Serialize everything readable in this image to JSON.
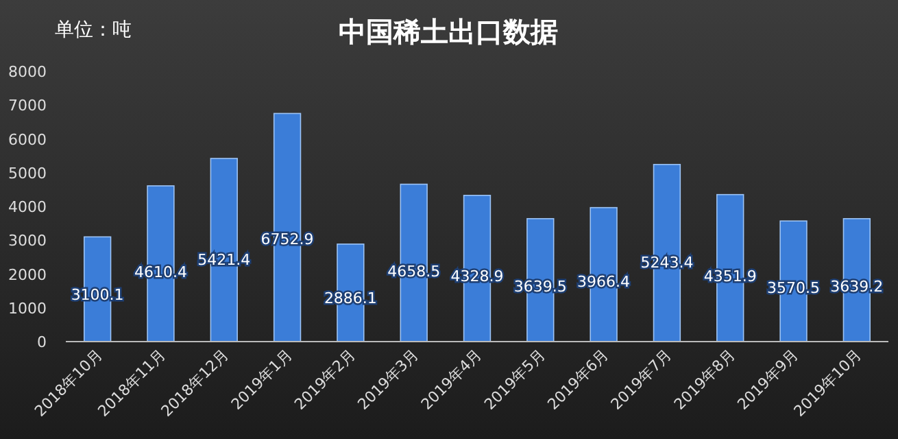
{
  "chart_data": {
    "type": "bar",
    "title": "中国稀土出口数据",
    "annotations": [
      "单位：吨"
    ],
    "categories": [
      "2018年10月",
      "2018年11月",
      "2018年12月",
      "2019年1月",
      "2019年2月",
      "2019年3月",
      "2019年4月",
      "2019年5月",
      "2019年6月",
      "2019年7月",
      "2019年8月",
      "2019年9月",
      "2019年10月"
    ],
    "values": [
      3100.1,
      4610.4,
      5421.4,
      6752.9,
      2886.1,
      4658.5,
      4328.9,
      3639.5,
      3966.4,
      5243.4,
      4351.9,
      3570.5,
      3639.2
    ],
    "color": "#3b7dd8",
    "ylim": [
      0,
      8000
    ],
    "yticks": [
      0,
      1000,
      2000,
      3000,
      4000,
      5000,
      6000,
      7000,
      8000
    ],
    "data_labels": true
  }
}
